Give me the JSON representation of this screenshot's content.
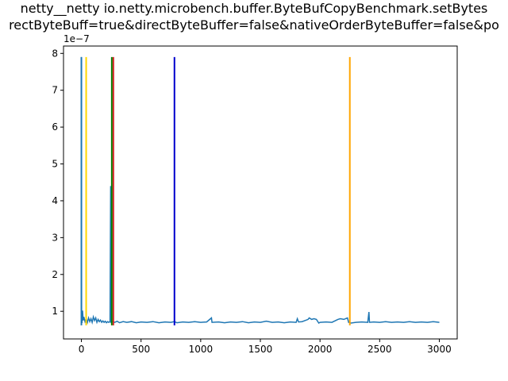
{
  "chart_data": {
    "type": "line",
    "title_lines": [
      "netty__netty io.netty.microbench.buffer.ByteBufCopyBenchmark.setBytes",
      "rectByteBuff=true&directByteBuffer=false&nativeOrderByteBuffer=false&po"
    ],
    "xlabel": "",
    "ylabel": "",
    "y_scale_label": "1e−7",
    "xlim": [
      -150,
      3150
    ],
    "ylim": [
      0.25,
      8.2
    ],
    "x_ticks": [
      0,
      500,
      1000,
      1500,
      2000,
      2500,
      3000
    ],
    "x_tick_labels": [
      "0",
      "500",
      "1000",
      "1500",
      "2000",
      "2500",
      "3000"
    ],
    "y_ticks": [
      1,
      2,
      3,
      4,
      5,
      6,
      7,
      8
    ],
    "y_tick_labels": [
      "1",
      "2",
      "3",
      "4",
      "5",
      "6",
      "7",
      "8"
    ],
    "grid": false,
    "series": [
      {
        "color": "#1f77b4",
        "points": [
          [
            0,
            7.9
          ],
          [
            2,
            0.9
          ],
          [
            5,
            0.68
          ],
          [
            10,
            1.02
          ],
          [
            15,
            0.75
          ],
          [
            20,
            0.85
          ],
          [
            30,
            0.72
          ],
          [
            40,
            0.8
          ],
          [
            50,
            0.7
          ],
          [
            60,
            0.82
          ],
          [
            70,
            0.72
          ],
          [
            80,
            0.8
          ],
          [
            90,
            0.7
          ],
          [
            100,
            0.85
          ],
          [
            110,
            0.75
          ],
          [
            120,
            0.82
          ],
          [
            130,
            0.7
          ],
          [
            140,
            0.78
          ],
          [
            150,
            0.72
          ],
          [
            160,
            0.76
          ],
          [
            170,
            0.7
          ],
          [
            180,
            0.74
          ],
          [
            190,
            0.7
          ],
          [
            200,
            0.73
          ],
          [
            210,
            0.69
          ],
          [
            220,
            0.72
          ],
          [
            230,
            0.7
          ],
          [
            240,
            0.72
          ],
          [
            245,
            4.4
          ],
          [
            248,
            0.7
          ],
          [
            260,
            0.72
          ],
          [
            280,
            0.7
          ],
          [
            300,
            0.73
          ],
          [
            320,
            0.69
          ],
          [
            350,
            0.72
          ],
          [
            380,
            0.7
          ],
          [
            420,
            0.72
          ],
          [
            460,
            0.69
          ],
          [
            500,
            0.71
          ],
          [
            550,
            0.7
          ],
          [
            600,
            0.72
          ],
          [
            650,
            0.69
          ],
          [
            700,
            0.71
          ],
          [
            750,
            0.7
          ],
          [
            780,
            0.72
          ],
          [
            800,
            0.69
          ],
          [
            850,
            0.71
          ],
          [
            900,
            0.7
          ],
          [
            950,
            0.72
          ],
          [
            1000,
            0.7
          ],
          [
            1050,
            0.71
          ],
          [
            1090,
            0.82
          ],
          [
            1095,
            0.7
          ],
          [
            1150,
            0.71
          ],
          [
            1200,
            0.69
          ],
          [
            1250,
            0.71
          ],
          [
            1300,
            0.7
          ],
          [
            1350,
            0.72
          ],
          [
            1400,
            0.69
          ],
          [
            1450,
            0.71
          ],
          [
            1500,
            0.7
          ],
          [
            1550,
            0.73
          ],
          [
            1600,
            0.7
          ],
          [
            1650,
            0.71
          ],
          [
            1700,
            0.69
          ],
          [
            1750,
            0.71
          ],
          [
            1800,
            0.7
          ],
          [
            1810,
            0.8
          ],
          [
            1820,
            0.71
          ],
          [
            1850,
            0.72
          ],
          [
            1900,
            0.78
          ],
          [
            1910,
            0.82
          ],
          [
            1930,
            0.78
          ],
          [
            1950,
            0.8
          ],
          [
            1970,
            0.78
          ],
          [
            1990,
            0.68
          ],
          [
            2000,
            0.7
          ],
          [
            2050,
            0.71
          ],
          [
            2100,
            0.7
          ],
          [
            2150,
            0.78
          ],
          [
            2170,
            0.8
          ],
          [
            2200,
            0.78
          ],
          [
            2230,
            0.82
          ],
          [
            2240,
            0.7
          ],
          [
            2260,
            0.68
          ],
          [
            2300,
            0.7
          ],
          [
            2350,
            0.71
          ],
          [
            2400,
            0.7
          ],
          [
            2410,
            0.98
          ],
          [
            2415,
            0.7
          ],
          [
            2450,
            0.71
          ],
          [
            2500,
            0.7
          ],
          [
            2550,
            0.72
          ],
          [
            2600,
            0.7
          ],
          [
            2650,
            0.71
          ],
          [
            2700,
            0.7
          ],
          [
            2750,
            0.72
          ],
          [
            2800,
            0.7
          ],
          [
            2850,
            0.71
          ],
          [
            2900,
            0.7
          ],
          [
            2950,
            0.72
          ],
          [
            3000,
            0.7
          ]
        ]
      }
    ],
    "vertical_lines": [
      {
        "x": 0,
        "color": "#1f77b4",
        "y_from": 0.62,
        "y_to": 7.9
      },
      {
        "x": 40,
        "color": "#ffd700",
        "y_from": 0.62,
        "y_to": 7.9
      },
      {
        "x": 255,
        "color": "#008000",
        "y_from": 0.62,
        "y_to": 7.9
      },
      {
        "x": 268,
        "color": "#d62728",
        "y_from": 0.62,
        "y_to": 7.9
      },
      {
        "x": 780,
        "color": "#0000cd",
        "y_from": 0.62,
        "y_to": 7.9
      },
      {
        "x": 2250,
        "color": "#ffa500",
        "y_from": 0.62,
        "y_to": 7.9
      }
    ]
  }
}
